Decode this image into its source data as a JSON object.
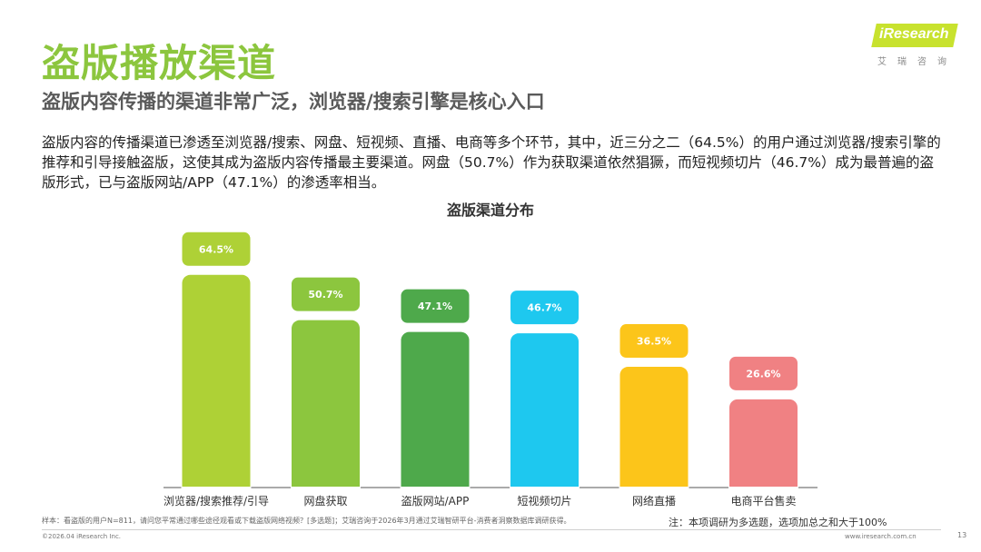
{
  "page": {
    "title": "盗版播放渠道",
    "subtitle": "盗版内容传播的渠道非常广泛，浏览器/搜索引擎是核心入口",
    "body": "盗版内容的传播渠道已渗透至浏览器/搜索、网盘、短视频、直播、电商等多个环节，其中，近三分之二（64.5%）的用户通过浏览器/搜索引擎的推荐和引导接触盗版，这使其成为盗版内容传播最主要渠道。网盘（50.7%）作为获取渠道依然猖獗，而短视频切片（46.7%）成为最普遍的盗版形式，已与盗版网站/APP（47.1%）的渗透率相当。"
  },
  "logo": {
    "text": "iResearch",
    "cn": "艾瑞咨询"
  },
  "footer": {
    "sample": "样本：看盗版的用户N=811，请问您平常通过哪些途径观看或下载盗版网络视频？[多选题]；艾瑞咨询于2026年3月通过艾瑞智研平台-消费者洞察数据库调研获得。",
    "note": "注：本项调研为多选题，选项加总之和大于100%",
    "copyright": "©2026.04 iResearch Inc.",
    "url": "www.iresearch.com.cn",
    "page_number": "13"
  },
  "chart_data": {
    "type": "bar",
    "title": "盗版渠道分布",
    "categories": [
      "浏览器/搜索推荐/引导",
      "网盘获取",
      "盗版网站/APP",
      "短视频切片",
      "网络直播",
      "电商平台售卖"
    ],
    "values": [
      64.5,
      50.7,
      47.1,
      46.7,
      36.5,
      26.6
    ],
    "labels": [
      "64.5%",
      "50.7%",
      "47.1%",
      "46.7%",
      "36.5%",
      "26.6%"
    ],
    "colors": [
      "#aed136",
      "#8cc63e",
      "#4ea94b",
      "#1ec8ef",
      "#fcc51a",
      "#f08183"
    ],
    "ylim": [
      0,
      70
    ],
    "xlabel": "",
    "ylabel": "",
    "grid": false
  }
}
